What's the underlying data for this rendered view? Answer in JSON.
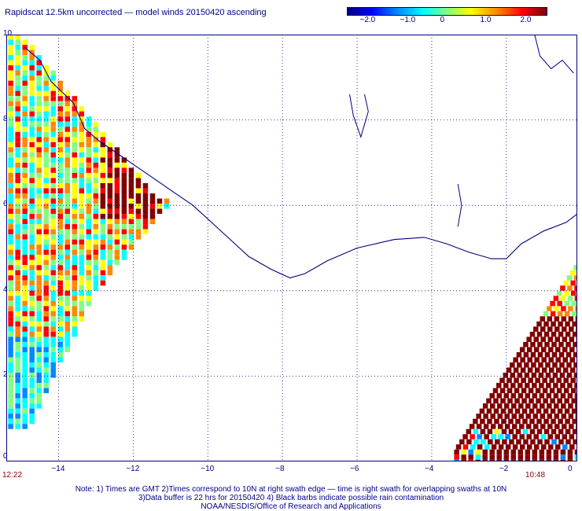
{
  "title": "Rapidscat 12.5km uncorrected — model winds 20150420 ascending",
  "colorbar": {
    "ticks": [
      {
        "label": "−2.0",
        "value": -2.0
      },
      {
        "label": "−1.0",
        "value": -1.0
      },
      {
        "label": "0",
        "value": 0
      },
      {
        "label": "1.0",
        "value": 1.0
      },
      {
        "label": "2.0",
        "value": 2.0
      }
    ],
    "min": -2.5,
    "max": 2.5
  },
  "map": {
    "lon_range": [
      -15.4,
      -0.1
    ],
    "lat_range": [
      0,
      10
    ],
    "x_ticks": [
      {
        "label": "−14",
        "value": -14
      },
      {
        "label": "−12",
        "value": -12
      },
      {
        "label": "−10",
        "value": -10
      },
      {
        "label": "−8",
        "value": -8
      },
      {
        "label": "−6",
        "value": -6
      },
      {
        "label": "−4",
        "value": -4
      },
      {
        "label": "−2",
        "value": -2
      },
      {
        "label": "0",
        "value": 0
      }
    ],
    "y_ticks": [
      {
        "label": "0",
        "value": 0
      },
      {
        "label": "2",
        "value": 2
      },
      {
        "label": "4",
        "value": 4
      },
      {
        "label": "6",
        "value": 6
      },
      {
        "label": "8",
        "value": 8
      },
      {
        "label": "10",
        "value": 10
      }
    ],
    "colors": {
      "coast": "#000080",
      "grid": "#000080",
      "frame": "#000080"
    }
  },
  "times": {
    "left": "12:22",
    "right": "10:48"
  },
  "notes": [
    "Note: 1) Times are GMT 2)Times correspond to 10N at right swath edge — time is right swath for overlapping swaths at 10N",
    "3)Data buffer is 22 hrs for 20150420 4) Black barbs indicate possible rain contamination",
    "NOAA/NESDIS/Office of Research and Applications"
  ]
}
